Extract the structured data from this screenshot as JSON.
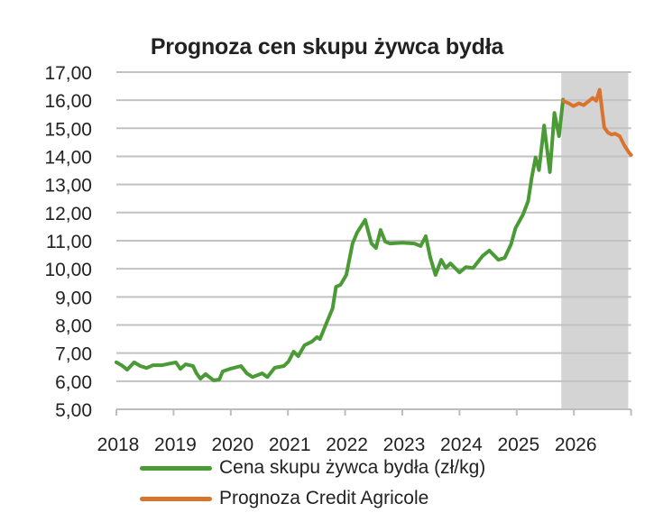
{
  "chart_data": {
    "type": "line",
    "title": "Prognoza cen skupu żywca bydła",
    "xlabel": "",
    "ylabel": "",
    "ylim": [
      5,
      17
    ],
    "y_ticks": [
      "5,00",
      "6,00",
      "7,00",
      "8,00",
      "9,00",
      "10,00",
      "11,00",
      "12,00",
      "13,00",
      "14,00",
      "15,00",
      "16,00",
      "17,00"
    ],
    "x_ticks": [
      "2018",
      "2019",
      "2020",
      "2021",
      "2022",
      "2023",
      "2024",
      "2025",
      "2026"
    ],
    "grid": true,
    "legend_position": "bottom",
    "shaded_region": {
      "x_start": 2025.78,
      "x_end": 2026.95,
      "color": "#d4d4d4",
      "label": "forecast period"
    },
    "series": [
      {
        "name": "Cena skupu żywca bydła (zł/kg)",
        "color": "#4a9a35",
        "points": [
          [
            2018.0,
            6.67
          ],
          [
            2018.09,
            6.57
          ],
          [
            2018.19,
            6.41
          ],
          [
            2018.31,
            6.67
          ],
          [
            2018.42,
            6.54
          ],
          [
            2018.53,
            6.47
          ],
          [
            2018.64,
            6.57
          ],
          [
            2018.8,
            6.57
          ],
          [
            2019.04,
            6.67
          ],
          [
            2019.12,
            6.44
          ],
          [
            2019.21,
            6.6
          ],
          [
            2019.34,
            6.54
          ],
          [
            2019.4,
            6.28
          ],
          [
            2019.47,
            6.09
          ],
          [
            2019.56,
            6.25
          ],
          [
            2019.7,
            6.03
          ],
          [
            2019.8,
            6.06
          ],
          [
            2019.86,
            6.35
          ],
          [
            2019.99,
            6.44
          ],
          [
            2020.18,
            6.54
          ],
          [
            2020.28,
            6.28
          ],
          [
            2020.38,
            6.15
          ],
          [
            2020.55,
            6.28
          ],
          [
            2020.64,
            6.15
          ],
          [
            2020.77,
            6.48
          ],
          [
            2020.93,
            6.54
          ],
          [
            2021.01,
            6.7
          ],
          [
            2021.1,
            7.05
          ],
          [
            2021.18,
            6.89
          ],
          [
            2021.29,
            7.28
          ],
          [
            2021.42,
            7.41
          ],
          [
            2021.51,
            7.57
          ],
          [
            2021.56,
            7.5
          ],
          [
            2021.67,
            8.05
          ],
          [
            2021.78,
            8.59
          ],
          [
            2021.84,
            9.36
          ],
          [
            2021.92,
            9.43
          ],
          [
            2022.02,
            9.78
          ],
          [
            2022.13,
            10.9
          ],
          [
            2022.21,
            11.29
          ],
          [
            2022.35,
            11.74
          ],
          [
            2022.46,
            10.9
          ],
          [
            2022.54,
            10.74
          ],
          [
            2022.62,
            11.38
          ],
          [
            2022.7,
            10.97
          ],
          [
            2022.78,
            10.9
          ],
          [
            2023.0,
            10.93
          ],
          [
            2023.21,
            10.9
          ],
          [
            2023.32,
            10.81
          ],
          [
            2023.41,
            11.16
          ],
          [
            2023.49,
            10.39
          ],
          [
            2023.58,
            9.78
          ],
          [
            2023.68,
            10.32
          ],
          [
            2023.76,
            10.03
          ],
          [
            2023.84,
            10.19
          ],
          [
            2024.0,
            9.87
          ],
          [
            2024.11,
            10.06
          ],
          [
            2024.24,
            10.03
          ],
          [
            2024.4,
            10.45
          ],
          [
            2024.52,
            10.65
          ],
          [
            2024.68,
            10.32
          ],
          [
            2024.79,
            10.39
          ],
          [
            2024.9,
            10.87
          ],
          [
            2024.98,
            11.45
          ],
          [
            2025.11,
            11.93
          ],
          [
            2025.2,
            12.41
          ],
          [
            2025.26,
            13.22
          ],
          [
            2025.33,
            13.96
          ],
          [
            2025.39,
            13.51
          ],
          [
            2025.48,
            15.1
          ],
          [
            2025.58,
            13.44
          ],
          [
            2025.66,
            15.55
          ],
          [
            2025.74,
            14.72
          ],
          [
            2025.81,
            16.02
          ]
        ]
      },
      {
        "name": "Prognoza Credit Agricole",
        "color": "#d9742f",
        "points": [
          [
            2025.81,
            15.98
          ],
          [
            2025.91,
            15.89
          ],
          [
            2025.99,
            15.79
          ],
          [
            2026.09,
            15.89
          ],
          [
            2026.17,
            15.82
          ],
          [
            2026.25,
            15.95
          ],
          [
            2026.33,
            16.08
          ],
          [
            2026.39,
            15.98
          ],
          [
            2026.45,
            16.37
          ],
          [
            2026.53,
            15.03
          ],
          [
            2026.6,
            14.84
          ],
          [
            2026.66,
            14.78
          ],
          [
            2026.72,
            14.81
          ],
          [
            2026.8,
            14.72
          ],
          [
            2026.88,
            14.4
          ],
          [
            2026.96,
            14.14
          ],
          [
            2027.0,
            14.05
          ]
        ]
      }
    ]
  },
  "legend": {
    "items": [
      {
        "label": "Cena skupu żywca bydła (zł/kg)",
        "color": "#4a9a35"
      },
      {
        "label": "Prognoza Credit Agricole",
        "color": "#d9742f"
      }
    ]
  }
}
